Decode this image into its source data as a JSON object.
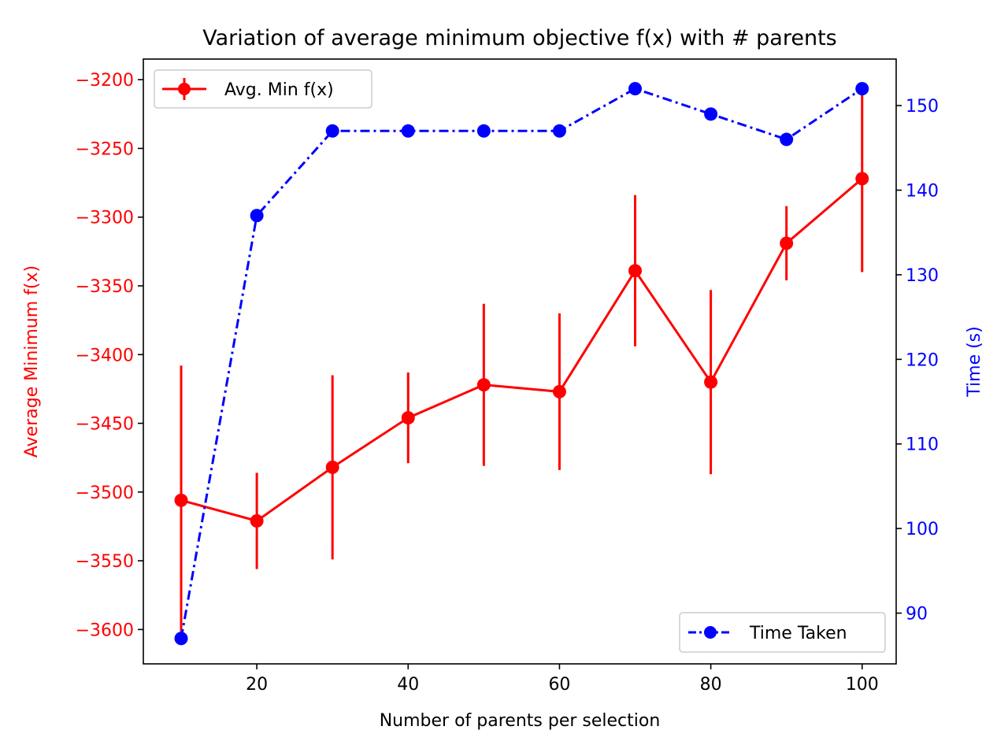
{
  "chart_data": {
    "type": "line",
    "title": "Variation of average minimum objective f(x) with # parents",
    "xlabel": "Number of parents per selection",
    "ylabel_left": "Average Minimum f(x)",
    "ylabel_right": "Time (s)",
    "xlim": [
      5,
      104.5
    ],
    "ylim_left": [
      -3625,
      -3185
    ],
    "ylim_right": [
      84,
      155.5
    ],
    "x_ticks": [
      20,
      40,
      60,
      80,
      100
    ],
    "y_ticks_left": [
      -3200,
      -3250,
      -3300,
      -3350,
      -3400,
      -3450,
      -3500,
      -3550,
      -3600
    ],
    "y_ticks_right": [
      90,
      100,
      110,
      120,
      130,
      140,
      150
    ],
    "x": [
      10,
      20,
      30,
      40,
      50,
      60,
      70,
      80,
      90,
      100
    ],
    "series": [
      {
        "name": "Avg. Min f(x)",
        "axis": "left",
        "color": "#ff0000",
        "line_style": "solid",
        "values": [
          -3506,
          -3521,
          -3482,
          -3446,
          -3422,
          -3427,
          -3339,
          -3420,
          -3319,
          -3272
        ],
        "error": [
          98,
          35,
          67,
          33,
          59,
          57,
          55,
          67,
          27,
          68
        ]
      },
      {
        "name": "Time Taken",
        "axis": "right",
        "color": "#0000ff",
        "line_style": "dashdot",
        "values": [
          87,
          137,
          147,
          147,
          147,
          147,
          152,
          149,
          146,
          152
        ]
      }
    ],
    "legend_left_position": "top-left",
    "legend_right_position": "bottom-right",
    "grid": false
  }
}
